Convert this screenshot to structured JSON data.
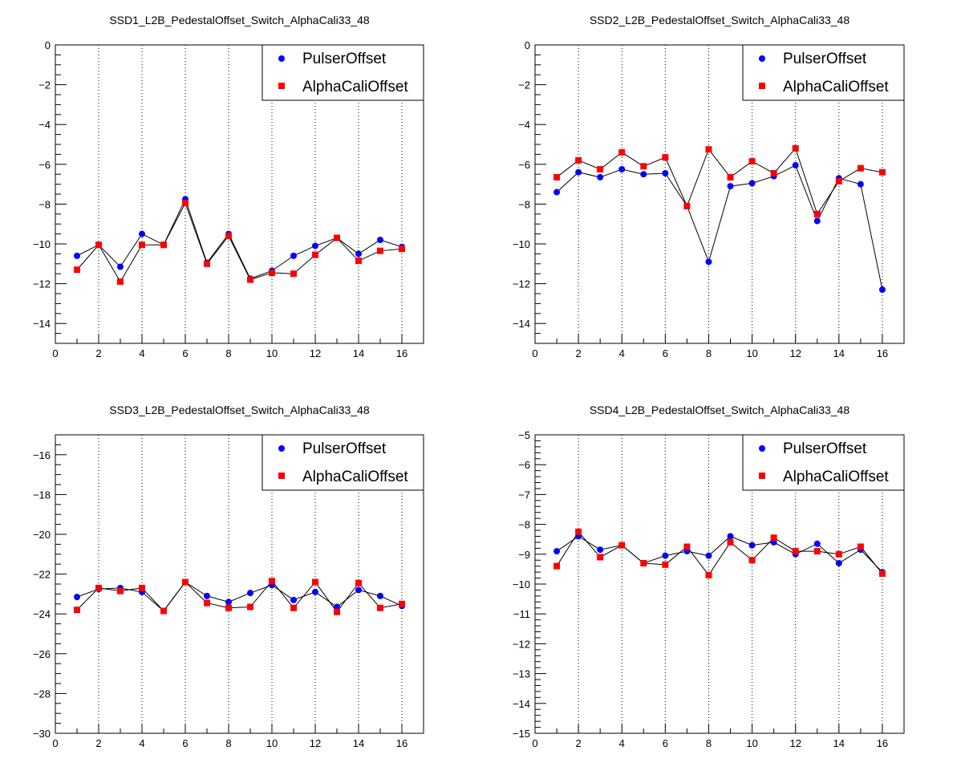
{
  "colors": {
    "pulser": "#0000ff",
    "alpha": "#ff0000",
    "line": "#000000",
    "grid": "#000000",
    "background": "#ffffff"
  },
  "legend_labels": [
    "PulserOffset",
    "AlphaCaliOffset"
  ],
  "chart_data": [
    {
      "type": "scatter",
      "title": "SSD1_L2B_PedestalOffset_Switch_AlphaCali33_48",
      "xlabel": "",
      "ylabel": "",
      "xlim": [
        0,
        17
      ],
      "ylim": [
        -15,
        0
      ],
      "xticks": [
        0,
        2,
        4,
        6,
        8,
        10,
        12,
        14,
        16
      ],
      "yticks": [
        0,
        -2,
        -4,
        -6,
        -8,
        -10,
        -12,
        -14
      ],
      "grid": "vertical dotted",
      "legend": "top-right",
      "x": [
        1,
        2,
        3,
        4,
        5,
        6,
        7,
        8,
        9,
        10,
        11,
        12,
        13,
        14,
        15,
        16
      ],
      "series": [
        {
          "name": "PulserOffset",
          "marker": "circle",
          "values": [
            -10.6,
            -10.05,
            -11.15,
            -9.5,
            -10.05,
            -7.75,
            -10.95,
            -9.5,
            -11.75,
            -11.35,
            -10.6,
            -10.1,
            -9.7,
            -10.5,
            -9.8,
            -10.15
          ]
        },
        {
          "name": "AlphaCaliOffset",
          "marker": "square",
          "values": [
            -11.3,
            -10.05,
            -11.9,
            -10.05,
            -10.05,
            -7.95,
            -11.0,
            -9.6,
            -11.8,
            -11.45,
            -11.5,
            -10.55,
            -9.7,
            -10.85,
            -10.35,
            -10.25
          ]
        }
      ]
    },
    {
      "type": "scatter",
      "title": "SSD2_L2B_PedestalOffset_Switch_AlphaCali33_48",
      "xlabel": "",
      "ylabel": "",
      "xlim": [
        0,
        17
      ],
      "ylim": [
        -15,
        0
      ],
      "xticks": [
        0,
        2,
        4,
        6,
        8,
        10,
        12,
        14,
        16
      ],
      "yticks": [
        0,
        -2,
        -4,
        -6,
        -8,
        -10,
        -12,
        -14
      ],
      "grid": "vertical dotted",
      "legend": "top-right",
      "x": [
        1,
        2,
        3,
        4,
        5,
        6,
        7,
        8,
        9,
        10,
        11,
        12,
        13,
        14,
        15,
        16
      ],
      "series": [
        {
          "name": "PulserOffset",
          "marker": "circle",
          "values": [
            -7.4,
            -6.4,
            -6.65,
            -6.25,
            -6.5,
            -6.45,
            -8.1,
            -10.9,
            -7.1,
            -6.95,
            -6.6,
            -6.05,
            -8.85,
            -6.7,
            -7.0,
            -12.3
          ]
        },
        {
          "name": "AlphaCaliOffset",
          "marker": "square",
          "values": [
            -6.65,
            -5.8,
            -6.25,
            -5.4,
            -6.1,
            -5.65,
            -8.1,
            -5.25,
            -6.65,
            -5.85,
            -6.45,
            -5.2,
            -8.5,
            -6.85,
            -6.2,
            -6.4
          ]
        }
      ]
    },
    {
      "type": "scatter",
      "title": "SSD3_L2B_PedestalOffset_Switch_AlphaCali33_48",
      "xlabel": "",
      "ylabel": "",
      "xlim": [
        0,
        17
      ],
      "ylim": [
        -30,
        -15
      ],
      "xticks": [
        0,
        2,
        4,
        6,
        8,
        10,
        12,
        14,
        16
      ],
      "yticks": [
        -16,
        -18,
        -20,
        -22,
        -24,
        -26,
        -28,
        -30
      ],
      "grid": "vertical dotted",
      "legend": "top-right",
      "x": [
        1,
        2,
        3,
        4,
        5,
        6,
        7,
        8,
        9,
        10,
        11,
        12,
        13,
        14,
        15,
        16
      ],
      "series": [
        {
          "name": "PulserOffset",
          "marker": "circle",
          "values": [
            -23.15,
            -22.75,
            -22.7,
            -22.9,
            -23.85,
            -22.4,
            -23.1,
            -23.4,
            -22.95,
            -22.55,
            -23.3,
            -22.9,
            -23.65,
            -22.8,
            -23.1,
            -23.6
          ]
        },
        {
          "name": "AlphaCaliOffset",
          "marker": "square",
          "values": [
            -23.8,
            -22.7,
            -22.85,
            -22.7,
            -23.85,
            -22.4,
            -23.45,
            -23.7,
            -23.65,
            -22.35,
            -23.7,
            -22.4,
            -23.9,
            -22.45,
            -23.7,
            -23.5
          ]
        }
      ]
    },
    {
      "type": "scatter",
      "title": "SSD4_L2B_PedestalOffset_Switch_AlphaCali33_48",
      "xlabel": "",
      "ylabel": "",
      "xlim": [
        0,
        17
      ],
      "ylim": [
        -15,
        -5
      ],
      "xticks": [
        0,
        2,
        4,
        6,
        8,
        10,
        12,
        14,
        16
      ],
      "yticks": [
        -5,
        -6,
        -7,
        -8,
        -9,
        -10,
        -11,
        -12,
        -13,
        -14,
        -15
      ],
      "grid": "vertical dotted",
      "legend": "top-right",
      "x": [
        1,
        2,
        3,
        4,
        5,
        6,
        7,
        8,
        9,
        10,
        11,
        12,
        13,
        14,
        15,
        16
      ],
      "series": [
        {
          "name": "PulserOffset",
          "marker": "circle",
          "values": [
            -8.9,
            -8.4,
            -8.85,
            -8.7,
            -9.3,
            -9.05,
            -8.9,
            -9.05,
            -8.4,
            -8.7,
            -8.6,
            -9.0,
            -8.65,
            -9.3,
            -8.85,
            -9.6
          ]
        },
        {
          "name": "AlphaCaliOffset",
          "marker": "square",
          "values": [
            -9.4,
            -8.25,
            -9.1,
            -8.7,
            -9.3,
            -9.35,
            -8.75,
            -9.7,
            -8.6,
            -9.2,
            -8.45,
            -8.9,
            -8.9,
            -9.0,
            -8.75,
            -9.65
          ]
        }
      ]
    }
  ]
}
